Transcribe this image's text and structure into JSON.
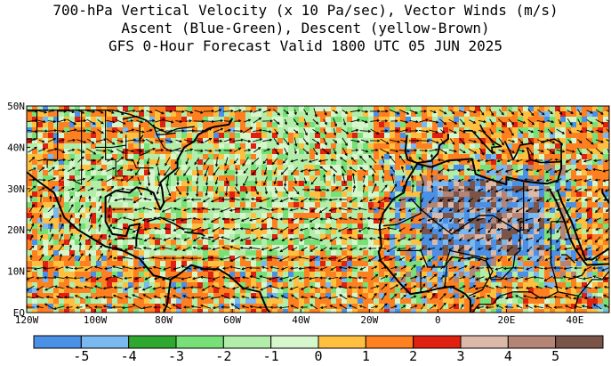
{
  "title": {
    "line1": "700-hPa Vertical Velocity (x 10 Pa/sec), Vector Winds (m/s)",
    "line2": "Ascent (Blue-Green), Descent (yellow-Brown)",
    "line3": "GFS 0-Hour Forecast Valid 1800 UTC 05 JUN 2025"
  },
  "map": {
    "lat_labels": [
      "50N",
      "40N",
      "30N",
      "20N",
      "10N",
      "EQ"
    ],
    "lat_values": [
      50,
      40,
      30,
      20,
      10,
      0
    ],
    "lon_labels": [
      "120W",
      "100W",
      "80W",
      "60W",
      "40W",
      "20W",
      "0",
      "20E",
      "40E"
    ],
    "lon_values": [
      -120,
      -100,
      -80,
      -60,
      -40,
      -20,
      0,
      20,
      40
    ],
    "lon_range": [
      -120,
      50
    ],
    "lat_range": [
      0,
      50
    ]
  },
  "legend": {
    "colors": [
      "#4a90e6",
      "#7ab8f0",
      "#2fa82f",
      "#77e077",
      "#b2eeaa",
      "#d6f6cc",
      "#ffc040",
      "#ff8020",
      "#e02010",
      "#dcb8a8",
      "#b48474",
      "#7a5448"
    ],
    "labels": [
      "-5",
      "-4",
      "-3",
      "-2",
      "-1",
      "0",
      "1",
      "2",
      "3",
      "4",
      "5"
    ]
  }
}
